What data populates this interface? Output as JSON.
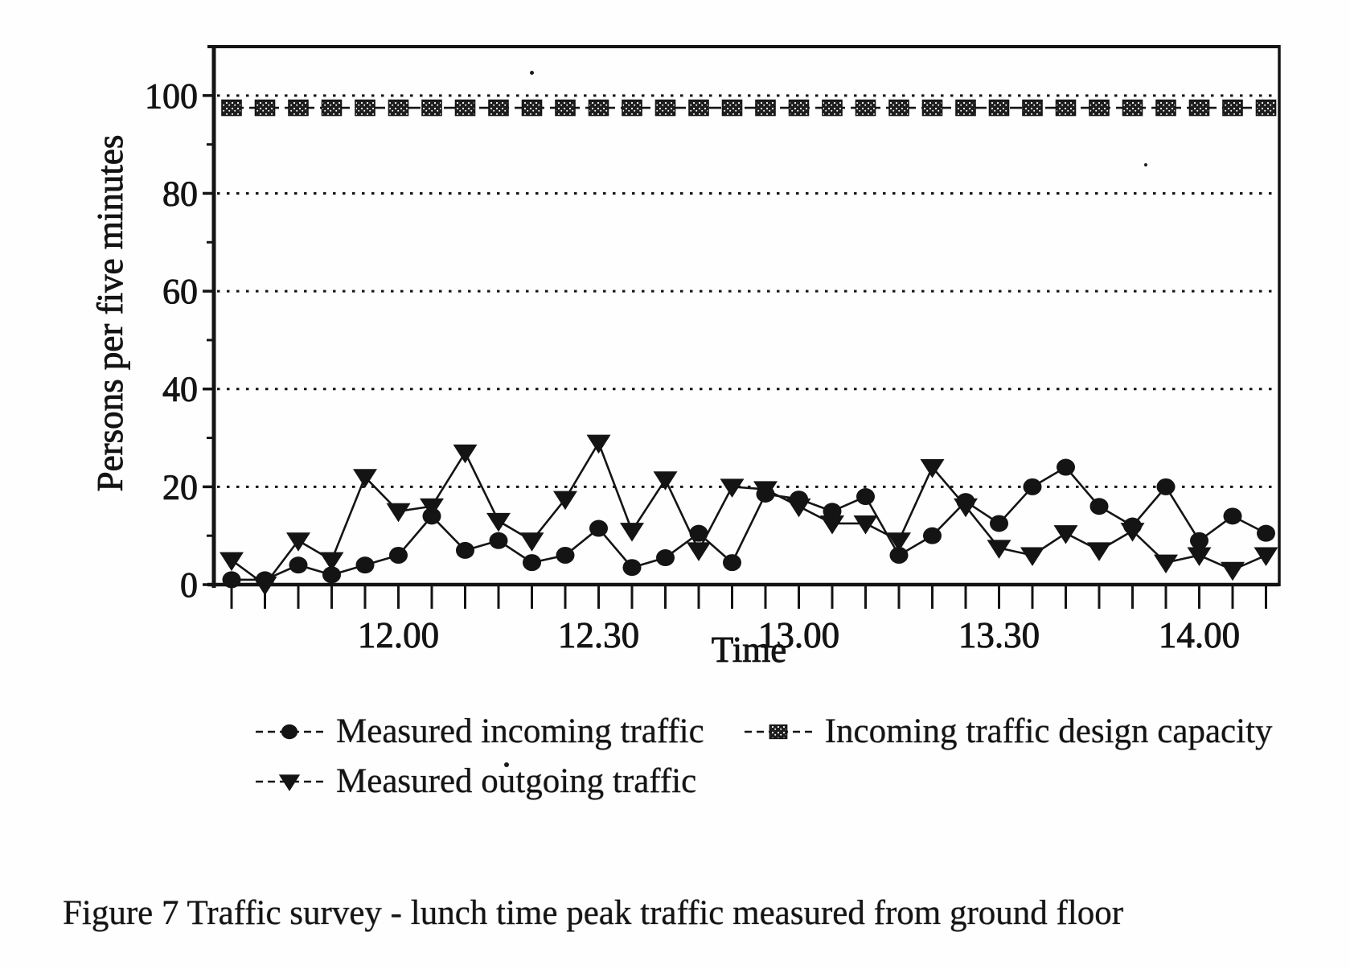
{
  "document": {
    "caption": "Figure 7 Traffic survey - lunch time peak traffic measured from ground floor"
  },
  "chart_data": {
    "type": "line",
    "title": "",
    "xlabel": "Time",
    "ylabel": "Persons per five minutes",
    "ylim": [
      0,
      110
    ],
    "yticks": [
      0,
      20,
      40,
      60,
      80,
      100
    ],
    "yticks_minor": [
      10,
      30,
      50,
      70,
      90
    ],
    "grid": "horizontal dotted lines at major y ticks",
    "legend_position": "below plot, two columns",
    "ink_color": "#141414",
    "categories": [
      "11.35",
      "11.40",
      "11.45",
      "11.50",
      "11.55",
      "12.00",
      "12.05",
      "12.10",
      "12.15",
      "12.20",
      "12.25",
      "12.30",
      "12.35",
      "12.40",
      "12.45",
      "12.50",
      "12.55",
      "13.00",
      "13.05",
      "13.10",
      "13.15",
      "13.20",
      "13.25",
      "13.30",
      "13.35",
      "13.40",
      "13.45",
      "13.50",
      "13.55",
      "14.00",
      "14.05",
      "14.10"
    ],
    "x_labeled_indices": [
      5,
      11,
      17,
      23,
      29
    ],
    "x_tick_labels": [
      "12.00",
      "12.30",
      "13.00",
      "13.30",
      "14.00"
    ],
    "series": [
      {
        "name": "Measured incoming traffic",
        "marker": "circle",
        "line": "solid",
        "values": [
          1,
          1,
          4,
          2,
          4,
          6,
          14,
          7,
          9,
          4.5,
          6,
          11.5,
          3.5,
          5.5,
          10.5,
          4.5,
          18.5,
          17.5,
          15,
          18,
          6,
          10,
          17,
          12.5,
          20,
          24,
          16,
          12,
          20,
          9,
          14,
          10.5
        ]
      },
      {
        "name": "Measured outgoing traffic",
        "marker": "triangle-down",
        "line": "solid",
        "values": [
          5,
          0,
          9,
          5,
          22,
          15,
          16,
          27,
          13,
          9,
          17.5,
          29,
          11,
          21.5,
          7,
          20,
          19.5,
          16,
          12.5,
          12.5,
          9,
          24,
          16,
          7.5,
          6,
          10.5,
          7,
          11,
          4.5,
          6,
          3,
          6
        ]
      },
      {
        "name": "Incoming traffic design capacity",
        "marker": "square-hatched",
        "line": "dashed",
        "values": [
          97.5,
          97.5,
          97.5,
          97.5,
          97.5,
          97.5,
          97.5,
          97.5,
          97.5,
          97.5,
          97.5,
          97.5,
          97.5,
          97.5,
          97.5,
          97.5,
          97.5,
          97.5,
          97.5,
          97.5,
          97.5,
          97.5,
          97.5,
          97.5,
          97.5,
          97.5,
          97.5,
          97.5,
          97.5,
          97.5,
          97.5,
          97.5
        ]
      }
    ]
  }
}
